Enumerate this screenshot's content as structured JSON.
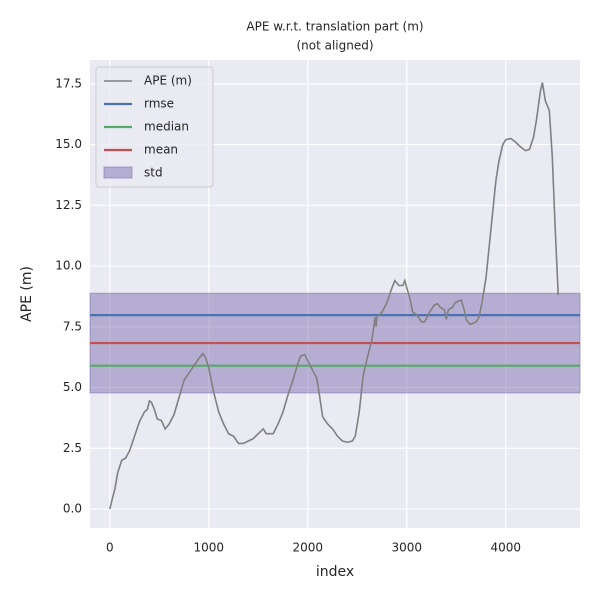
{
  "chart_data": {
    "type": "line",
    "title": [
      "APE w.r.t. translation part (m)",
      "(not aligned)"
    ],
    "x_label": "index",
    "y_label": "APE (m)",
    "xlim": [
      -200,
      4750
    ],
    "xticks": [
      0,
      1000,
      2000,
      3000,
      4000
    ],
    "ylim": [
      -0.78,
      18.48
    ],
    "yticks": [
      {
        "value": 0,
        "label": "0.0"
      },
      {
        "value": 2.5,
        "label": "2.5"
      },
      {
        "value": 5,
        "label": "5.0"
      },
      {
        "value": 7.5,
        "label": "7.5"
      },
      {
        "value": 10,
        "label": "10.0"
      },
      {
        "value": 12.5,
        "label": "12.5"
      },
      {
        "value": 15,
        "label": "15.0"
      },
      {
        "value": 17.5,
        "label": "17.5"
      }
    ],
    "grid": true,
    "legend": "upper left",
    "series": [
      {
        "name": "APE (m)",
        "color": "#808080",
        "x": [
          0,
          30,
          50,
          80,
          120,
          160,
          200,
          250,
          300,
          350,
          380,
          400,
          420,
          450,
          480,
          520,
          560,
          600,
          650,
          700,
          750,
          800,
          850,
          900,
          940,
          970,
          1000,
          1050,
          1100,
          1150,
          1200,
          1250,
          1300,
          1350,
          1400,
          1450,
          1500,
          1550,
          1580,
          1650,
          1700,
          1750,
          1800,
          1850,
          1900,
          1930,
          1970,
          2000,
          2050,
          2090,
          2110,
          2150,
          2200,
          2250,
          2300,
          2350,
          2400,
          2450,
          2480,
          2520,
          2560,
          2600,
          2650,
          2680,
          2690,
          2700,
          2750,
          2800,
          2850,
          2880,
          2920,
          2960,
          2980,
          3000,
          3030,
          3060,
          3100,
          3150,
          3180,
          3230,
          3280,
          3310,
          3340,
          3380,
          3400,
          3420,
          3460,
          3490,
          3550,
          3580,
          3600,
          3640,
          3700,
          3730,
          3760,
          3800,
          3850,
          3900,
          3930,
          3970,
          4000,
          4050,
          4100,
          4150,
          4200,
          4240,
          4280,
          4310,
          4350,
          4370,
          4400,
          4440,
          4470,
          4500,
          4530
        ],
        "values": [
          0,
          0.5,
          0.8,
          1.5,
          2.0,
          2.1,
          2.4,
          3.0,
          3.6,
          4.0,
          4.1,
          4.45,
          4.4,
          4.1,
          3.7,
          3.65,
          3.3,
          3.5,
          3.9,
          4.6,
          5.3,
          5.6,
          5.9,
          6.2,
          6.4,
          6.2,
          5.8,
          4.8,
          4.0,
          3.5,
          3.1,
          3.0,
          2.7,
          2.7,
          2.8,
          2.9,
          3.1,
          3.3,
          3.1,
          3.1,
          3.5,
          4.0,
          4.7,
          5.3,
          6.0,
          6.3,
          6.35,
          6.1,
          5.7,
          5.4,
          4.9,
          3.8,
          3.5,
          3.3,
          3.0,
          2.8,
          2.75,
          2.8,
          3.0,
          4.0,
          5.5,
          6.2,
          7.0,
          7.9,
          7.5,
          7.9,
          8.1,
          8.5,
          9.1,
          9.4,
          9.2,
          9.2,
          9.4,
          9.1,
          8.7,
          8.1,
          8.0,
          7.7,
          7.7,
          8.1,
          8.4,
          8.45,
          8.3,
          8.2,
          7.8,
          8.2,
          8.3,
          8.5,
          8.6,
          8.2,
          7.8,
          7.6,
          7.7,
          7.9,
          8.5,
          9.5,
          11.5,
          13.5,
          14.3,
          15.0,
          15.2,
          15.25,
          15.1,
          14.9,
          14.75,
          14.8,
          15.3,
          16.0,
          17.2,
          17.55,
          16.8,
          16.4,
          14.5,
          11.5,
          8.8
        ]
      }
    ],
    "stats": [
      {
        "name": "rmse",
        "color": "#4c72b0",
        "value": 7.98
      },
      {
        "name": "median",
        "color": "#55a868",
        "value": 5.9
      },
      {
        "name": "mean",
        "color": "#c44e52",
        "value": 6.83
      }
    ],
    "band": {
      "name": "std",
      "color": "#8172b2",
      "value": 2.05
    }
  }
}
